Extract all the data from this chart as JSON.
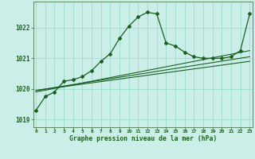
{
  "title": "Graphe pression niveau de la mer (hPa)",
  "bg_color": "#cceee8",
  "grid_color": "#99ddcc",
  "line_color": "#1a6020",
  "xlim": [
    -0.3,
    23.3
  ],
  "ylim": [
    1018.75,
    1022.85
  ],
  "yticks": [
    1019,
    1020,
    1021,
    1022
  ],
  "xticks": [
    0,
    1,
    2,
    3,
    4,
    5,
    6,
    7,
    8,
    9,
    10,
    11,
    12,
    13,
    14,
    15,
    16,
    17,
    18,
    19,
    20,
    21,
    22,
    23
  ],
  "series_main_x": [
    0,
    1,
    2,
    3,
    4,
    5,
    6,
    7,
    8,
    9,
    10,
    11,
    12,
    13,
    14,
    15,
    16,
    17,
    18,
    19,
    20,
    21,
    22,
    23
  ],
  "series_main_y": [
    1019.3,
    1019.75,
    1019.9,
    1020.25,
    1020.3,
    1020.4,
    1020.6,
    1020.9,
    1021.15,
    1021.65,
    1022.05,
    1022.35,
    1022.5,
    1022.45,
    1021.5,
    1021.4,
    1021.2,
    1021.05,
    1021.0,
    1021.0,
    1021.0,
    1021.05,
    1021.25,
    1022.45
  ],
  "line2_x": [
    0,
    23
  ],
  "line2_y": [
    1019.9,
    1021.25
  ],
  "line3_x": [
    0,
    23
  ],
  "line3_y": [
    1019.95,
    1021.05
  ],
  "line4_x": [
    0,
    23
  ],
  "line4_y": [
    1019.95,
    1020.9
  ]
}
